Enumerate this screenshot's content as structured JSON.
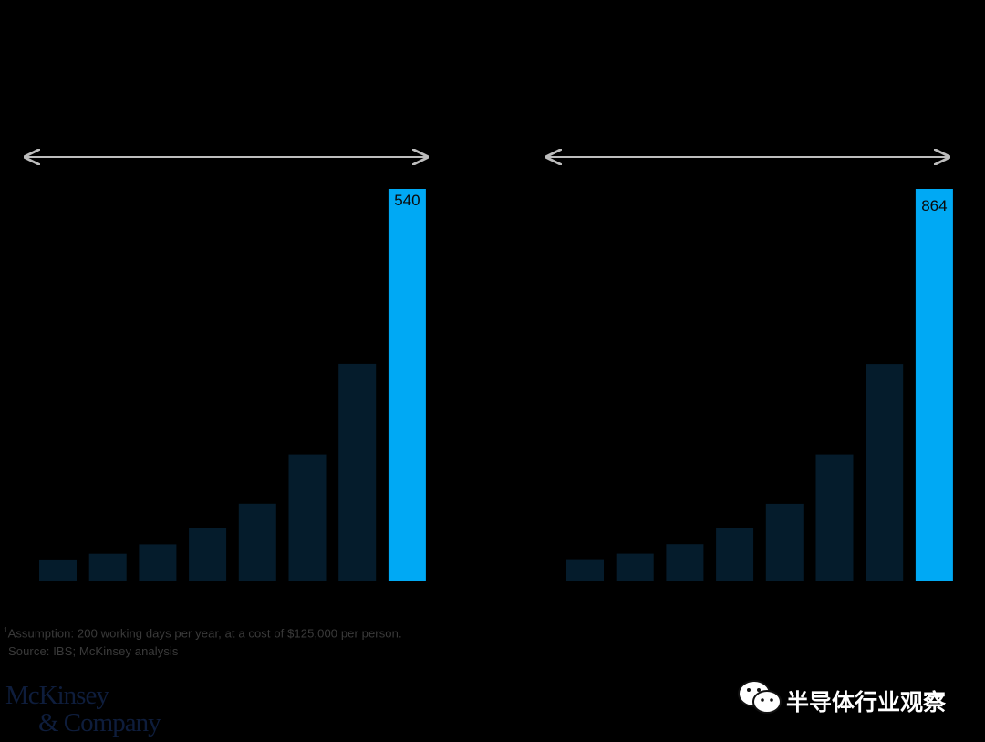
{
  "colors": {
    "background": "#000000",
    "bar_dark": "#051c2c",
    "bar_highlight": "#00a9f4",
    "arrow": "#bdbdbd",
    "label_text": "#0a0a0a"
  },
  "chart_data": [
    {
      "type": "bar",
      "ylim": [
        0,
        540
      ],
      "grid": false,
      "series": [
        {
          "values": [
            29,
            38,
            51,
            73,
            107,
            175,
            299,
            540
          ],
          "value_labels": [
            "",
            "",
            "",
            "",
            "",
            "",
            "",
            "540"
          ],
          "highlight": [
            false,
            false,
            false,
            false,
            false,
            false,
            false,
            true
          ]
        }
      ],
      "annotation": "double-headed arrow spanning all bars"
    },
    {
      "type": "bar",
      "ylim": [
        0,
        864
      ],
      "grid": false,
      "series": [
        {
          "values": [
            47,
            61,
            82,
            117,
            171,
            280,
            478,
            864
          ],
          "value_labels": [
            "",
            "",
            "",
            "",
            "",
            "",
            "",
            "864"
          ],
          "highlight": [
            false,
            false,
            false,
            false,
            false,
            false,
            false,
            true
          ]
        }
      ],
      "annotation": "double-headed arrow spanning all bars"
    }
  ],
  "footnotes": {
    "sup": "1",
    "assumption": "Assumption: 200 working days per year, at a cost of $125,000 per person.",
    "source": "Source: IBS; McKinsey analysis"
  },
  "logo": {
    "line1": "McKinsey",
    "line2": "& Company"
  },
  "watermark": {
    "text": "半导体行业观察",
    "icon": "wechat-icon"
  }
}
